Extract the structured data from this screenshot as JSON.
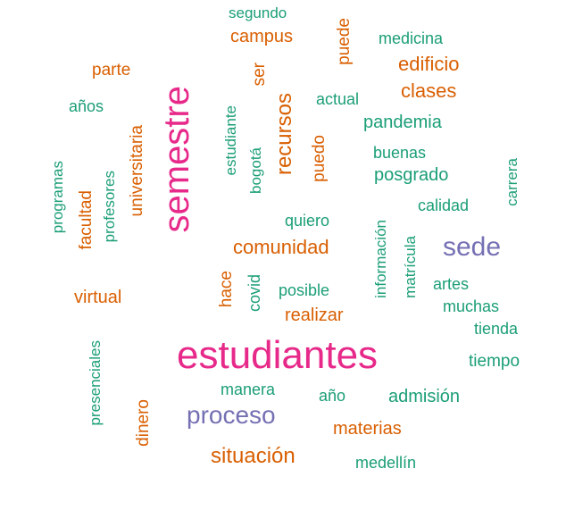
{
  "colors": {
    "teal": "#1b9e77",
    "orange": "#d95f02",
    "purple": "#7570b3",
    "magenta": "#e7298a"
  },
  "words": [
    {
      "text": "estudiantes",
      "color": "magenta",
      "size": 5,
      "vertical": false
    },
    {
      "text": "semestre",
      "color": "magenta",
      "size": 5,
      "vertical": true
    },
    {
      "text": "sede",
      "color": "purple",
      "size": 4,
      "vertical": false
    },
    {
      "text": "proceso",
      "color": "purple",
      "size": 4,
      "vertical": false
    },
    {
      "text": "situación",
      "color": "orange",
      "size": 3,
      "vertical": false
    },
    {
      "text": "edificio",
      "color": "orange",
      "size": 3,
      "vertical": false
    },
    {
      "text": "clases",
      "color": "orange",
      "size": 3,
      "vertical": false
    },
    {
      "text": "recursos",
      "color": "orange",
      "size": 3,
      "vertical": true
    },
    {
      "text": "comunidad",
      "color": "orange",
      "size": 3,
      "vertical": false
    },
    {
      "text": "campus",
      "color": "orange",
      "size": 2,
      "vertical": false
    },
    {
      "text": "parte",
      "color": "orange",
      "size": 2,
      "vertical": false
    },
    {
      "text": "puede",
      "color": "orange",
      "size": 2,
      "vertical": true
    },
    {
      "text": "ser",
      "color": "orange",
      "size": 2,
      "vertical": true
    },
    {
      "text": "universitaria",
      "color": "orange",
      "size": 2,
      "vertical": true
    },
    {
      "text": "facultad",
      "color": "orange",
      "size": 2,
      "vertical": true
    },
    {
      "text": "puedo",
      "color": "orange",
      "size": 2,
      "vertical": true
    },
    {
      "text": "virtual",
      "color": "orange",
      "size": 2,
      "vertical": false
    },
    {
      "text": "hace",
      "color": "orange",
      "size": 2,
      "vertical": true
    },
    {
      "text": "realizar",
      "color": "orange",
      "size": 2,
      "vertical": false
    },
    {
      "text": "materias",
      "color": "orange",
      "size": 2,
      "vertical": false
    },
    {
      "text": "dinero",
      "color": "orange",
      "size": 2,
      "vertical": true
    },
    {
      "text": "segundo",
      "color": "teal",
      "size": 1,
      "vertical": false
    },
    {
      "text": "medicina",
      "color": "teal",
      "size": 1,
      "vertical": false
    },
    {
      "text": "años",
      "color": "teal",
      "size": 1,
      "vertical": false
    },
    {
      "text": "actual",
      "color": "teal",
      "size": 1,
      "vertical": false
    },
    {
      "text": "pandemia",
      "color": "teal",
      "size": 2,
      "vertical": false
    },
    {
      "text": "estudiante",
      "color": "teal",
      "size": 1,
      "vertical": true
    },
    {
      "text": "bogotá",
      "color": "teal",
      "size": 1,
      "vertical": true
    },
    {
      "text": "buenas",
      "color": "teal",
      "size": 1,
      "vertical": false
    },
    {
      "text": "posgrado",
      "color": "teal",
      "size": 2,
      "vertical": false
    },
    {
      "text": "carrera",
      "color": "teal",
      "size": 1,
      "vertical": true
    },
    {
      "text": "programas",
      "color": "teal",
      "size": 1,
      "vertical": true
    },
    {
      "text": "profesores",
      "color": "teal",
      "size": 1,
      "vertical": true
    },
    {
      "text": "calidad",
      "color": "teal",
      "size": 1,
      "vertical": false
    },
    {
      "text": "quiero",
      "color": "teal",
      "size": 1,
      "vertical": false
    },
    {
      "text": "información",
      "color": "teal",
      "size": 1,
      "vertical": true
    },
    {
      "text": "matrícula",
      "color": "teal",
      "size": 1,
      "vertical": true
    },
    {
      "text": "artes",
      "color": "teal",
      "size": 1,
      "vertical": false
    },
    {
      "text": "covid",
      "color": "teal",
      "size": 1,
      "vertical": true
    },
    {
      "text": "posible",
      "color": "teal",
      "size": 1,
      "vertical": false
    },
    {
      "text": "muchas",
      "color": "teal",
      "size": 1,
      "vertical": false
    },
    {
      "text": "tienda",
      "color": "teal",
      "size": 1,
      "vertical": false
    },
    {
      "text": "presenciales",
      "color": "teal",
      "size": 1,
      "vertical": true
    },
    {
      "text": "tiempo",
      "color": "teal",
      "size": 1,
      "vertical": false
    },
    {
      "text": "manera",
      "color": "teal",
      "size": 1,
      "vertical": false
    },
    {
      "text": "año",
      "color": "teal",
      "size": 1,
      "vertical": false
    },
    {
      "text": "admisión",
      "color": "teal",
      "size": 2,
      "vertical": false
    },
    {
      "text": "medellín",
      "color": "teal",
      "size": 1,
      "vertical": false
    }
  ]
}
